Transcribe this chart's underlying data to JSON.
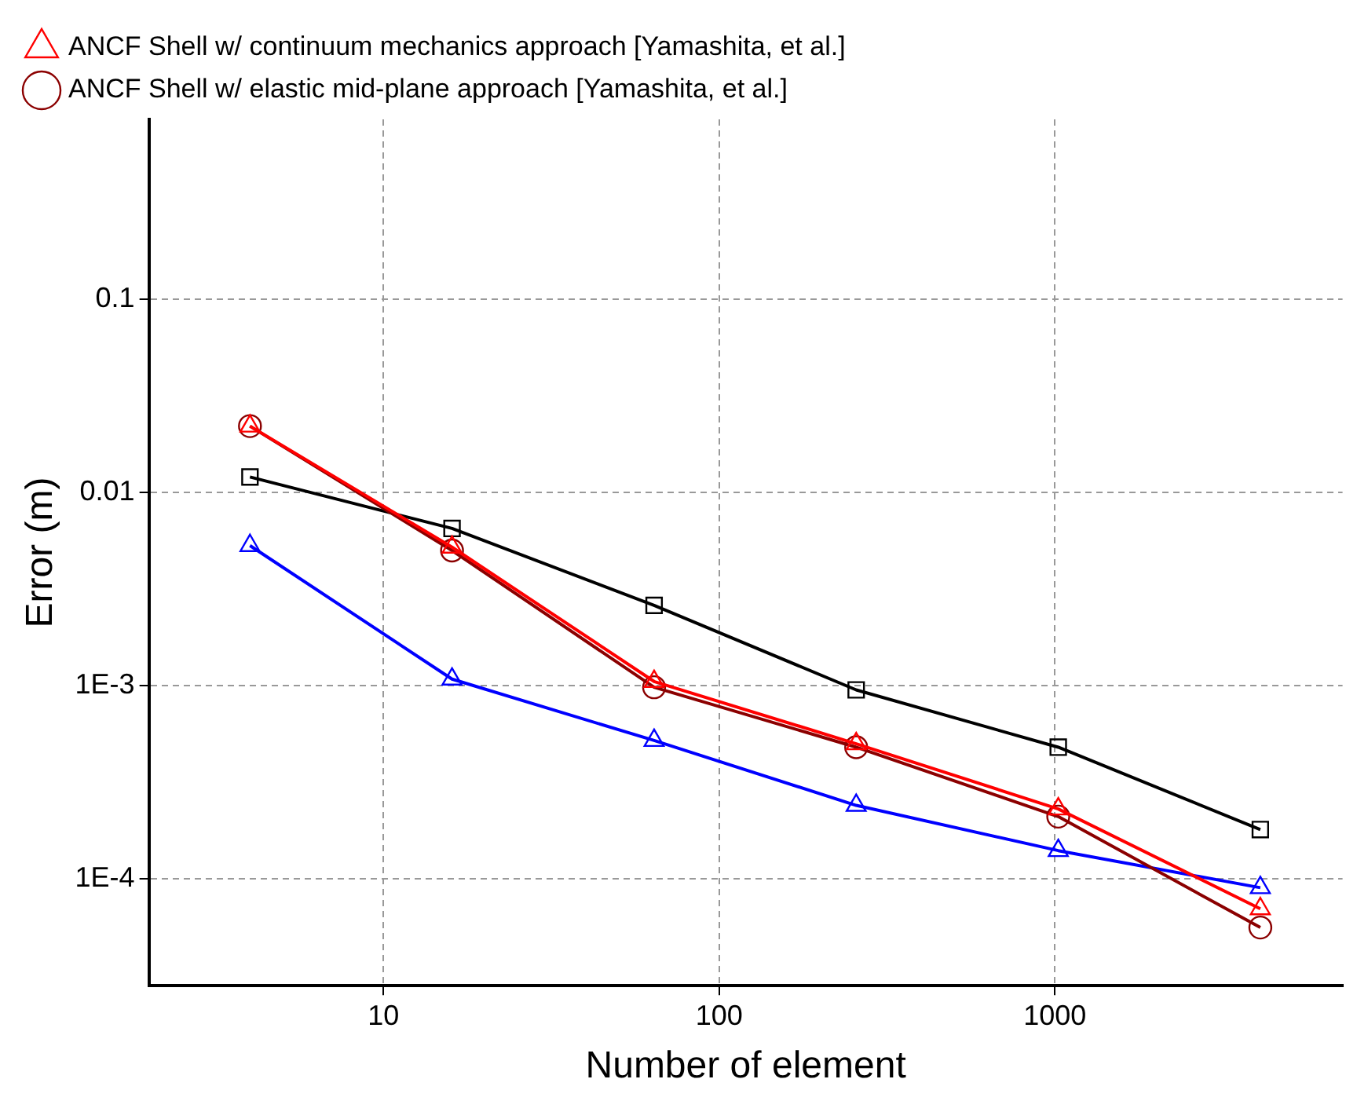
{
  "chart_data": {
    "type": "line",
    "xlabel": "Number of element",
    "ylabel": "Error (m)",
    "log": "xy",
    "grid": true,
    "legend": "top left",
    "x": [
      4,
      16,
      64,
      256,
      1024,
      4096
    ],
    "xlim": [
      2,
      7200
    ],
    "xticks": [
      10,
      100,
      1000
    ],
    "ylim": [
      2.8e-05,
      0.85
    ],
    "yticks": [
      0.1,
      0.01,
      {
        "value": 0.001,
        "label": "1E-3"
      },
      {
        "value": 0.0001,
        "label": "1E-4"
      }
    ],
    "series": [
      {
        "name": "ANCF Shell w/ continuum mechanics approach [Yamashita, et al.]",
        "color": "#ff0000",
        "marker": "triangle",
        "values": [
          0.022,
          0.0052,
          0.00105,
          0.0005,
          0.00023,
          7e-05
        ]
      },
      {
        "name": "ANCF Shell w/ elastic mid-plane approach [Yamashita, et al.]",
        "color": "#8b0000",
        "marker": "circle",
        "values": [
          0.022,
          0.005,
          0.00098,
          0.00048,
          0.00021,
          5.6e-05
        ]
      },
      {
        "color": "#000000",
        "marker": "square",
        "values": [
          0.012,
          0.0065,
          0.0026,
          0.00095,
          0.00048,
          0.00018
        ]
      },
      {
        "color": "#0000ff",
        "marker": "triangle",
        "values": [
          0.0053,
          0.00108,
          0.00052,
          0.00024,
          0.00014,
          9e-05
        ]
      }
    ]
  }
}
